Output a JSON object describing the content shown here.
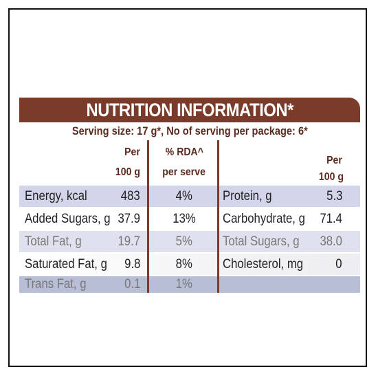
{
  "title": "NUTRITION INFORMATION*",
  "serving": "Serving size: 17 g*, No of serving per package: 6*",
  "headers": {
    "per_top": "Per",
    "per_bottom": "100 g",
    "rda_top": "% RDA^",
    "rda_bottom": "per serve",
    "right_per_top": "Per",
    "right_per_bottom": "100 g"
  },
  "rows": [
    {
      "left_label": "Energy, kcal",
      "left_value": "483",
      "rda": "4%",
      "right_label": "Protein, g",
      "right_value": "5.3"
    },
    {
      "left_label": "Added Sugars, g",
      "left_value": "37.9",
      "rda": "13%",
      "right_label": "Carbohydrate, g",
      "right_value": "71.4"
    },
    {
      "left_label": "Total Fat, g",
      "left_value": "19.7",
      "rda": "5%",
      "right_label": "Total Sugars, g",
      "right_value": "38.0"
    },
    {
      "left_label": "Saturated Fat, g",
      "left_value": "9.8",
      "rda": "8%",
      "right_label": "Cholesterol, mg",
      "right_value": "0"
    },
    {
      "left_label": "Trans Fat, g",
      "left_value": "0.1",
      "rda": "1%",
      "right_label": "",
      "right_value": ""
    }
  ],
  "colors": {
    "banner": "#7b3b2b",
    "header_text": "#5b2a1f",
    "row_blue": "#d3d6ea"
  }
}
